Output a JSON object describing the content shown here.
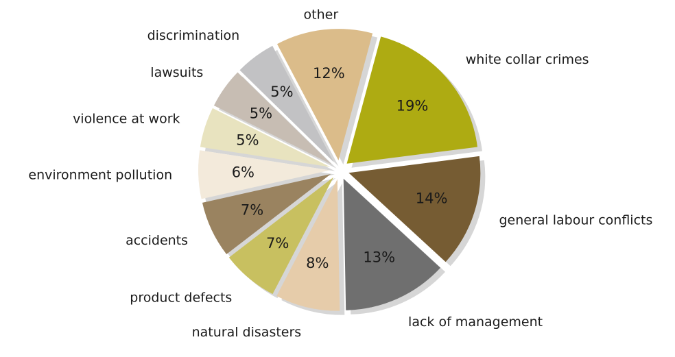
{
  "chart_data": {
    "type": "pie",
    "categories": [
      "white collar crimes",
      "general labour conflicts",
      "lack of management",
      "natural disasters",
      "product defects",
      "accidents",
      "environment pollution",
      "violence at work",
      "lawsuits",
      "discrimination",
      "other"
    ],
    "values": [
      19,
      14,
      13,
      8,
      7,
      7,
      6,
      5,
      5,
      5,
      12
    ],
    "value_labels": [
      "19%",
      "14%",
      "13%",
      "8%",
      "7%",
      "7%",
      "6%",
      "5%",
      "5%",
      "5%",
      "12%"
    ],
    "colors": [
      "#aeab12",
      "#765c33",
      "#6f6f6f",
      "#e6ccaa",
      "#c8c060",
      "#9a8360",
      "#f3eadb",
      "#e8e3bf",
      "#c7bdb3",
      "#c2c2c4",
      "#dbbc8a"
    ]
  }
}
